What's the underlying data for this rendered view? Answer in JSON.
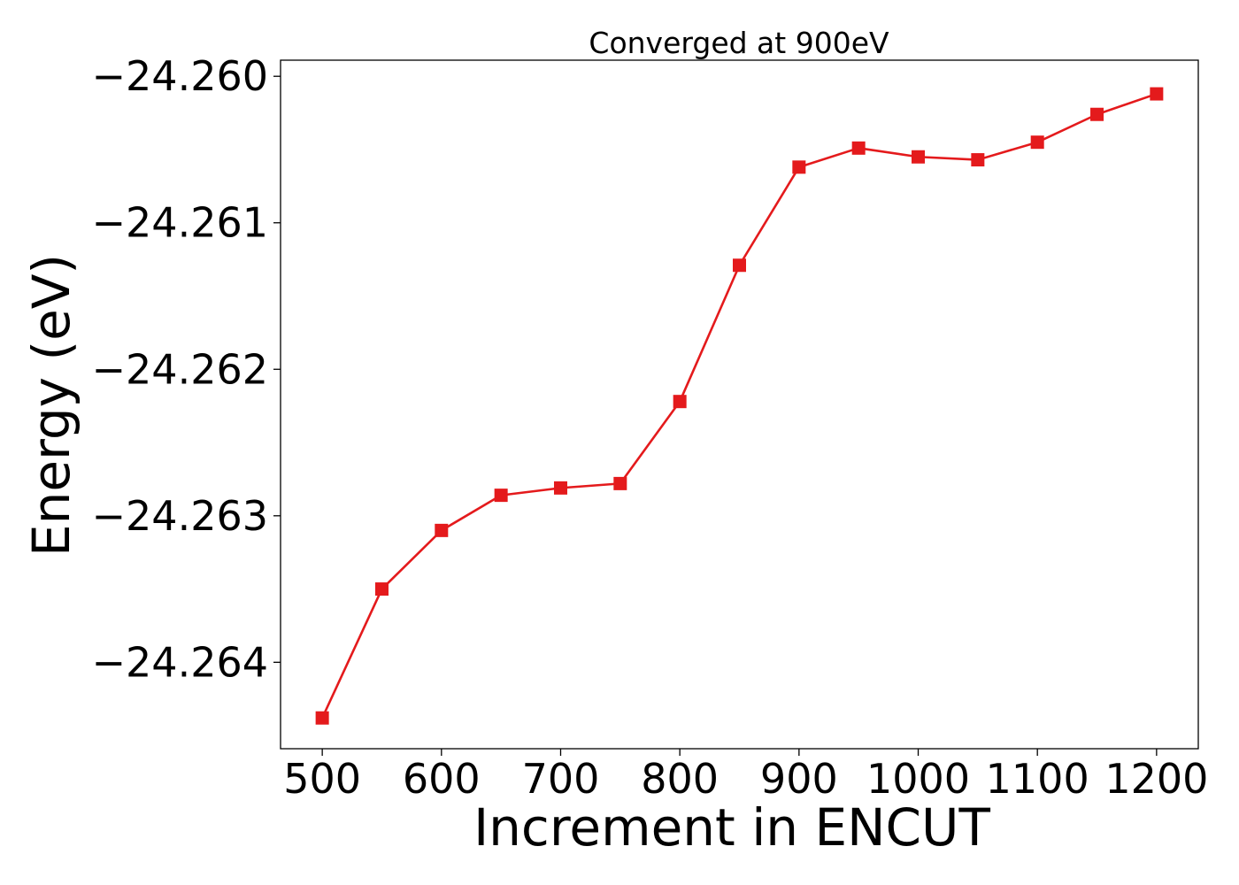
{
  "chart_data": {
    "type": "line",
    "title": "Converged at 900eV",
    "xlabel": "Increment in ENCUT",
    "ylabel": "Energy (eV)",
    "x": [
      500,
      550,
      600,
      650,
      700,
      750,
      800,
      850,
      900,
      950,
      1000,
      1050,
      1100,
      1150,
      1200
    ],
    "series": [
      {
        "values": [
          -24.26438,
          -24.2635,
          -24.2631,
          -24.26286,
          -24.26281,
          -24.26278,
          -24.26222,
          -24.26129,
          -24.26062,
          -24.26049,
          -24.26055,
          -24.26057,
          -24.26045,
          -24.26026,
          -24.26012
        ],
        "color": "#e41a1c",
        "marker": "square"
      }
    ],
    "xticks": [
      500,
      600,
      700,
      800,
      900,
      1000,
      1100,
      1200
    ],
    "xtick_labels": [
      "500",
      "600",
      "700",
      "800",
      "900",
      "1000",
      "1100",
      "1200"
    ],
    "yticks": [
      -24.264,
      -24.263,
      -24.262,
      -24.261,
      -24.26
    ],
    "ytick_labels": [
      "−24.264",
      "−24.263",
      "−24.262",
      "−24.261",
      "−24.260"
    ],
    "xlim": [
      465,
      1235
    ],
    "ylim": [
      -24.26459,
      -24.25989
    ],
    "grid": false,
    "legend": false
  }
}
